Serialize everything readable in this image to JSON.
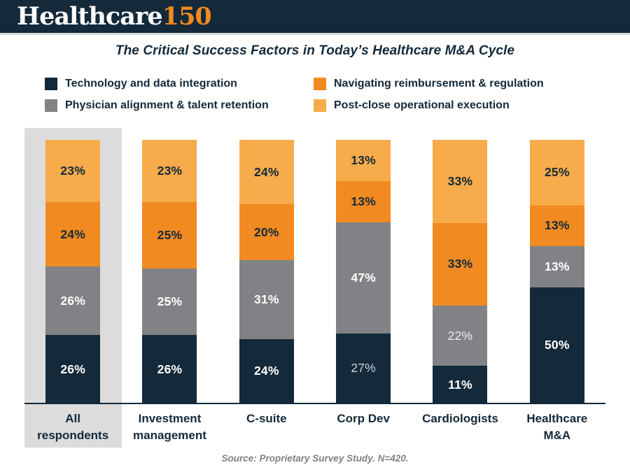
{
  "header": {
    "logo_primary": "Healthcare",
    "logo_accent": "150"
  },
  "title": "The Critical Success Factors in Today’s Healthcare M&A Cycle",
  "legend": {
    "items": [
      {
        "label": "Technology and data integration",
        "color": "#14293a"
      },
      {
        "label": "Navigating reimbursement & regulation",
        "color": "#f18a21"
      },
      {
        "label": "Physician alignment & talent retention",
        "color": "#818285"
      },
      {
        "label": "Post-close operational execution",
        "color": "#f7ab4a"
      }
    ]
  },
  "source": "Source: Proprietary Survey Study. N=420.",
  "colors": {
    "navy": "#14293a",
    "orange": "#f18a21",
    "light_orange": "#f7ab4a",
    "gray": "#818285",
    "highlight_panel": "#dcdcdc",
    "header_border": "#d4d6d7",
    "source_text": "#7f8183"
  },
  "chart_data": {
    "type": "bar",
    "variant": "stacked-percent-column",
    "title": "The Critical Success Factors in Today’s Healthcare M&A Cycle",
    "xlabel": "",
    "ylabel": "",
    "ylim": [
      0,
      100
    ],
    "grid": false,
    "legend_position": "top",
    "categories": [
      "All respondents",
      "Investment management",
      "C-suite",
      "Corp Dev",
      "Cardiologists",
      "Healthcare M&A"
    ],
    "category_label_lines": [
      [
        "All",
        "respondents"
      ],
      [
        "Investment",
        "management"
      ],
      [
        "C-suite"
      ],
      [
        "Corp Dev"
      ],
      [
        "Cardiologists"
      ],
      [
        "Healthcare",
        "M&A"
      ]
    ],
    "highlighted_category_index": 0,
    "stack_order": "bottom_to_top",
    "series": [
      {
        "name": "Technology and data integration",
        "color": "#14293a",
        "label_color": "#ffffff",
        "values": [
          26,
          26,
          24,
          27,
          11,
          50
        ]
      },
      {
        "name": "Physician alignment & talent retention",
        "color": "#818285",
        "label_color": "#ffffff",
        "values": [
          26,
          25,
          31,
          47,
          22,
          13
        ]
      },
      {
        "name": "Navigating reimbursement & regulation",
        "color": "#f18a21",
        "label_color": "#14293a",
        "values": [
          24,
          25,
          20,
          13,
          33,
          13
        ]
      },
      {
        "name": "Post-close operational execution",
        "color": "#f7ab4a",
        "label_color": "#14293a",
        "values": [
          23,
          23,
          24,
          13,
          33,
          25
        ]
      }
    ],
    "value_suffix": "%",
    "label_overrides": [
      {
        "series_index": 0,
        "category_index": 3,
        "color": "#ccd2d6",
        "font_weight": 400
      },
      {
        "series_index": 1,
        "category_index": 4,
        "color": "#edeeec",
        "font_weight": 400
      }
    ]
  }
}
